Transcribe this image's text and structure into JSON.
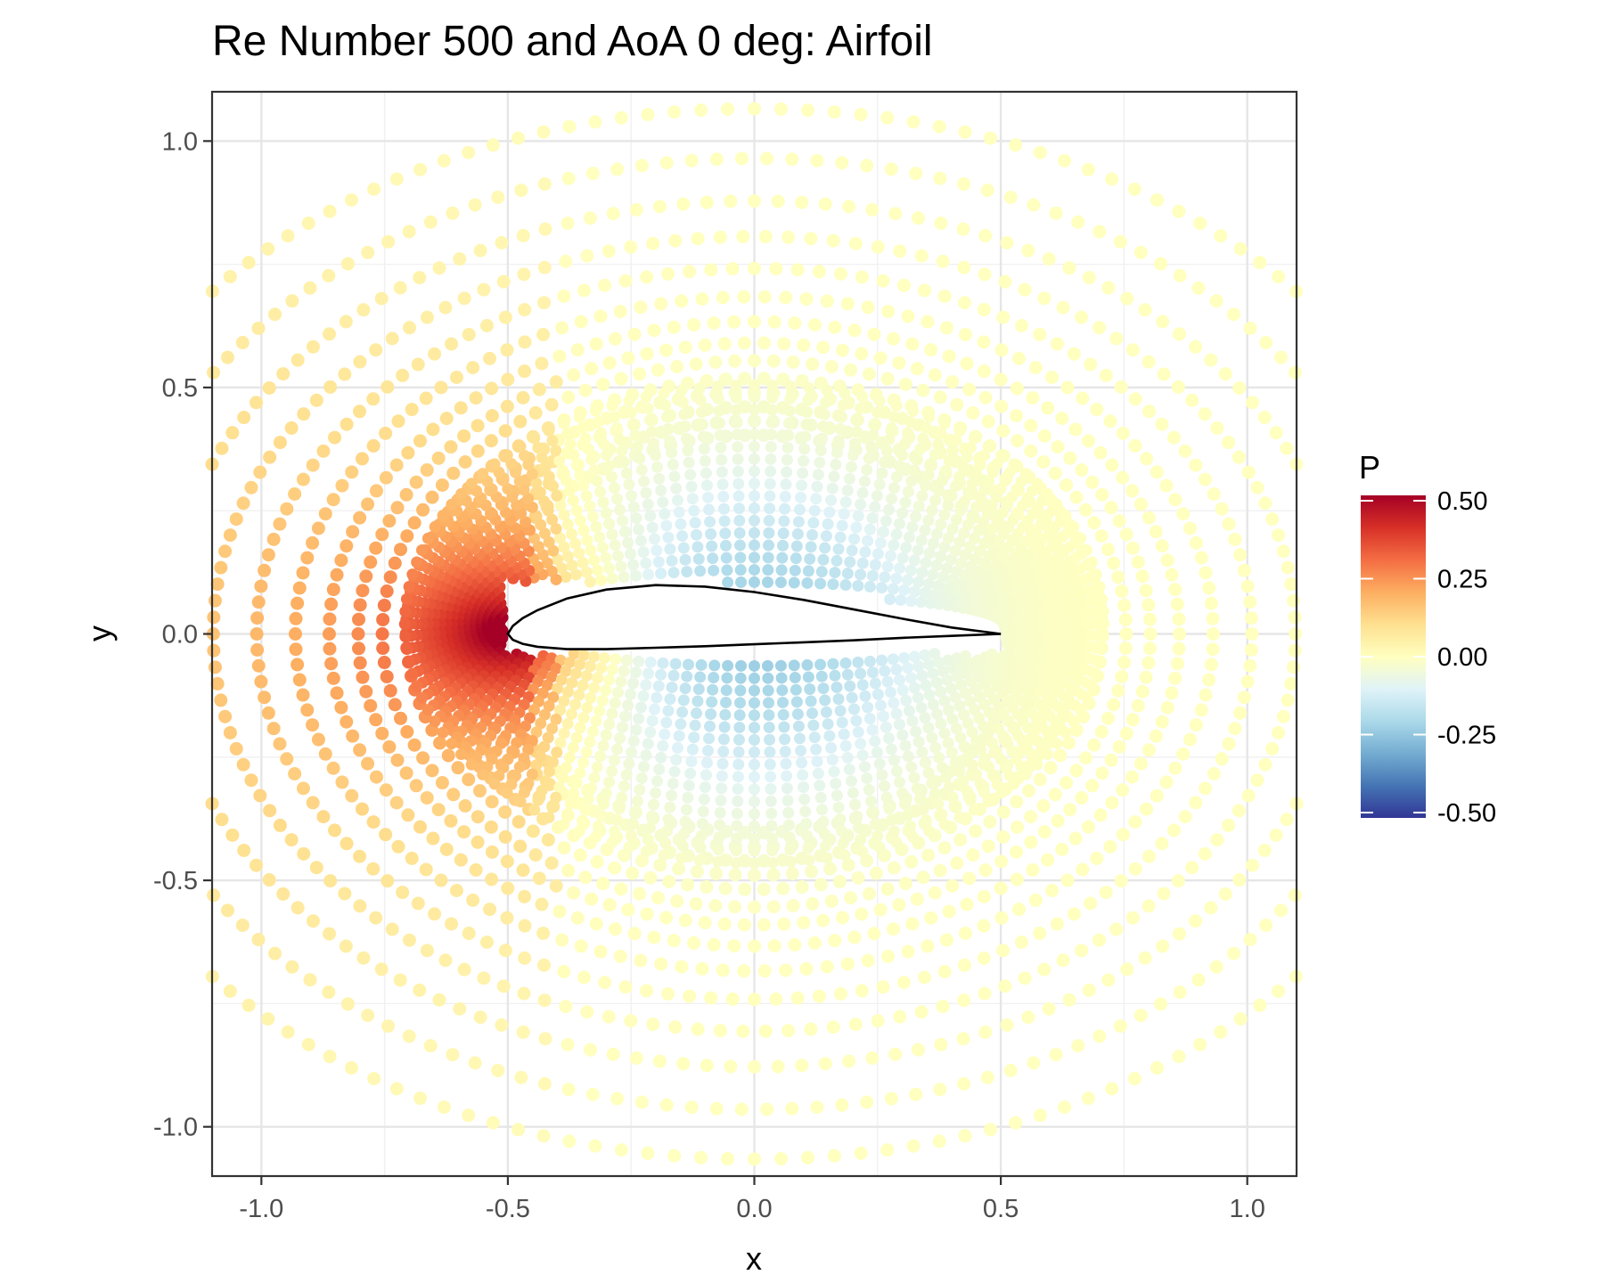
{
  "chart_data": {
    "type": "scatter",
    "title": "Re Number 500 and AoA 0 deg: Airfoil",
    "xlabel": "x",
    "ylabel": "y",
    "xlim": [
      -1.1,
      1.1
    ],
    "ylim": [
      -1.1,
      1.1
    ],
    "x_ticks": [
      -1.0,
      -0.5,
      0.0,
      0.5,
      1.0
    ],
    "x_tick_labels": [
      "-1.0",
      "-0.5",
      "0.0",
      "0.5",
      "1.0"
    ],
    "y_ticks": [
      -1.0,
      -0.5,
      0.0,
      0.5,
      1.0
    ],
    "y_tick_labels": [
      "-1.0",
      "-0.5",
      "0.0",
      "0.5",
      "1.0"
    ],
    "grid": true,
    "color_variable": "P",
    "colorbar": {
      "title": "P",
      "range": [
        -0.5,
        0.5
      ],
      "ticks": [
        0.5,
        0.25,
        0.0,
        -0.25,
        -0.5
      ],
      "tick_labels": [
        "0.50",
        "0.25",
        "0.00",
        "-0.25",
        "-0.50"
      ],
      "palette": [
        "#313695",
        "#4575b4",
        "#74add1",
        "#abd9e9",
        "#e0f3f8",
        "#ffffbf",
        "#fee090",
        "#fdae61",
        "#f46d43",
        "#d73027",
        "#a50026"
      ],
      "placement": "right"
    },
    "airfoil_outline": {
      "color": "#000000",
      "upper": [
        [
          0.5,
          0.0
        ],
        [
          0.4,
          0.013
        ],
        [
          0.3,
          0.031
        ],
        [
          0.2,
          0.05
        ],
        [
          0.1,
          0.069
        ],
        [
          0.0,
          0.085
        ],
        [
          -0.1,
          0.096
        ],
        [
          -0.2,
          0.099
        ],
        [
          -0.3,
          0.09
        ],
        [
          -0.38,
          0.072
        ],
        [
          -0.44,
          0.048
        ],
        [
          -0.47,
          0.032
        ],
        [
          -0.49,
          0.016
        ],
        [
          -0.5,
          0.0
        ]
      ],
      "lower": [
        [
          -0.5,
          0.0
        ],
        [
          -0.49,
          -0.012
        ],
        [
          -0.47,
          -0.02
        ],
        [
          -0.44,
          -0.026
        ],
        [
          -0.38,
          -0.031
        ],
        [
          -0.3,
          -0.031
        ],
        [
          -0.2,
          -0.028
        ],
        [
          -0.1,
          -0.025
        ],
        [
          0.0,
          -0.021
        ],
        [
          0.1,
          -0.017
        ],
        [
          0.2,
          -0.013
        ],
        [
          0.3,
          -0.008
        ],
        [
          0.4,
          -0.004
        ],
        [
          0.5,
          0.0
        ]
      ]
    },
    "field": {
      "description_of_sampling": "points sampled on elliptical rings around the airfoil; P is highest at the leading edge stagnation point and negative along the suction region",
      "stagnation_point": [
        -0.5,
        0.0
      ],
      "ring_radii_x": [
        0.56,
        0.6,
        0.64,
        0.68,
        0.72,
        0.77,
        0.82,
        0.88,
        0.95,
        1.03,
        1.12,
        1.22,
        1.34,
        1.48
      ],
      "ring_radii_y_factor": 0.72,
      "max_P": 0.48,
      "min_P": -0.3
    }
  }
}
